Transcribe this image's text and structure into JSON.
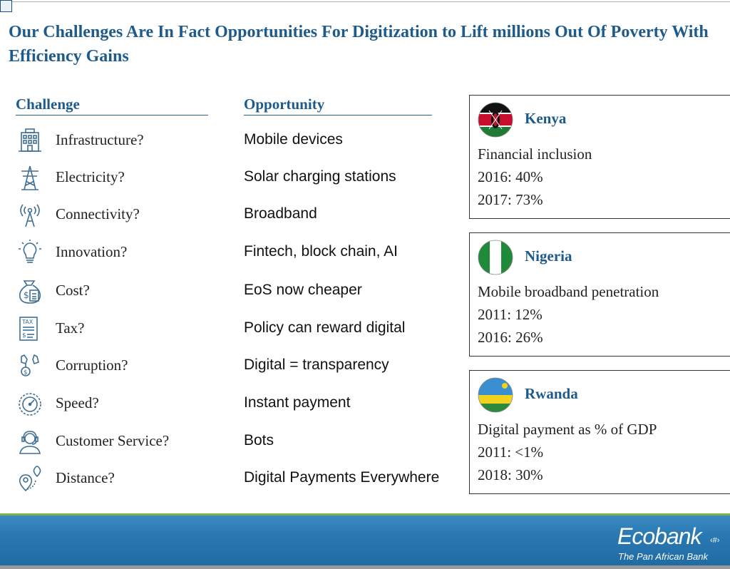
{
  "title": "Our Challenges Are In Fact Opportunities For Digitization to Lift millions Out Of Poverty With Efficiency Gains",
  "headers": {
    "challenge": "Challenge",
    "opportunity": "Opportunity"
  },
  "rows": [
    {
      "icon": "building-icon",
      "challenge": "Infrastructure?",
      "opportunity": "Mobile devices"
    },
    {
      "icon": "power-tower-icon",
      "challenge": "Electricity?",
      "opportunity": "Solar charging stations"
    },
    {
      "icon": "antenna-icon",
      "challenge": "Connectivity?",
      "opportunity": "Broadband"
    },
    {
      "icon": "lightbulb-icon",
      "challenge": "Innovation?",
      "opportunity": "Fintech, block chain, AI"
    },
    {
      "icon": "money-calculator-icon",
      "challenge": "Cost?",
      "opportunity": "EoS now cheaper"
    },
    {
      "icon": "tax-document-icon",
      "challenge": "Tax?",
      "opportunity": "Policy can reward digital"
    },
    {
      "icon": "bribe-hand-icon",
      "challenge": "Corruption?",
      "opportunity": "Digital = transparency"
    },
    {
      "icon": "speedometer-icon",
      "challenge": "Speed?",
      "opportunity": "Instant payment"
    },
    {
      "icon": "headset-agent-icon",
      "challenge": "Customer Service?",
      "opportunity": "Bots"
    },
    {
      "icon": "location-pin-icon",
      "challenge": "Distance?",
      "opportunity": "Digital Payments Everywhere"
    }
  ],
  "cards": [
    {
      "flag": "kenya-flag-icon",
      "country": "Kenya",
      "metric": "Financial inclusion",
      "stat1": "2016: 40%",
      "stat2": "2017: 73%"
    },
    {
      "flag": "nigeria-flag-icon",
      "country": "Nigeria",
      "metric": "Mobile broadband penetration",
      "stat1": "2011: 12%",
      "stat2": "2016: 26%"
    },
    {
      "flag": "rwanda-flag-icon",
      "country": "Rwanda",
      "metric": "Digital payment as % of GDP",
      "stat1": "2011: <1%",
      "stat2": "2018: 30%"
    }
  ],
  "footer": {
    "logo": "Ecobank",
    "tagline": "The Pan African Bank",
    "page_number": "‹#›"
  },
  "colors": {
    "title": "#1e5a8a",
    "footer": "#2a78b2",
    "icon": "#3f6f95"
  }
}
